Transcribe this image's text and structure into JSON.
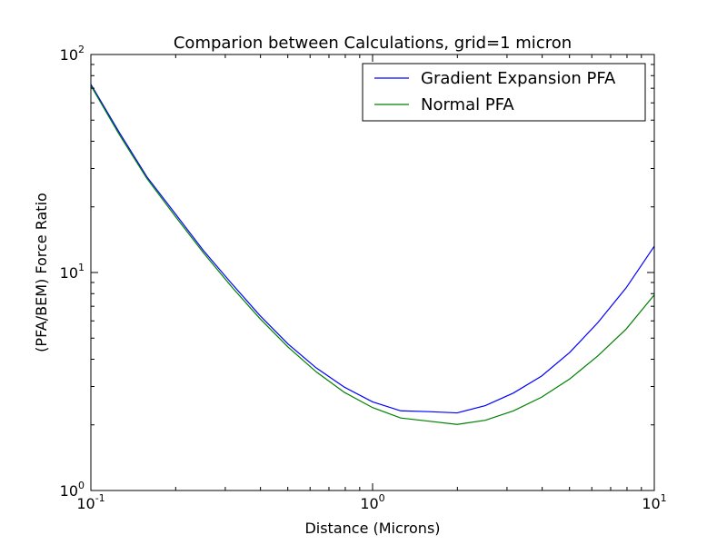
{
  "chart_data": {
    "type": "line",
    "title": "Comparion between Calculations, grid=1 micron",
    "xlabel": "Distance (Microns)",
    "ylabel": "(PFA/BEM) Force Ratio",
    "xscale": "log",
    "yscale": "log",
    "xlim": [
      0.1,
      10
    ],
    "ylim": [
      1,
      100
    ],
    "x_ticks": [
      {
        "base": "10",
        "exp": "-1"
      },
      {
        "base": "10",
        "exp": "0"
      },
      {
        "base": "10",
        "exp": "1"
      }
    ],
    "y_ticks": [
      {
        "base": "10",
        "exp": "0"
      },
      {
        "base": "10",
        "exp": "1"
      },
      {
        "base": "10",
        "exp": "2"
      }
    ],
    "grid": false,
    "legend_position": "top-right",
    "x": [
      0.1,
      0.126,
      0.158,
      0.2,
      0.251,
      0.316,
      0.398,
      0.501,
      0.631,
      0.794,
      1.0,
      1.259,
      1.585,
      1.995,
      2.512,
      3.162,
      3.981,
      5.012,
      6.31,
      7.943,
      10.0
    ],
    "series": [
      {
        "name": "Gradient Expansion PFA",
        "color": "#0000ff",
        "values": [
          73,
          44,
          27.5,
          18.5,
          12.6,
          8.9,
          6.35,
          4.7,
          3.65,
          2.98,
          2.55,
          2.32,
          2.3,
          2.27,
          2.45,
          2.8,
          3.35,
          4.3,
          5.9,
          8.5,
          13.2
        ]
      },
      {
        "name": "Normal PFA",
        "color": "#008000",
        "values": [
          72,
          43,
          27,
          18,
          12.3,
          8.6,
          6.15,
          4.55,
          3.5,
          2.82,
          2.4,
          2.15,
          2.08,
          2.01,
          2.1,
          2.32,
          2.68,
          3.25,
          4.15,
          5.5,
          7.9
        ]
      }
    ]
  }
}
